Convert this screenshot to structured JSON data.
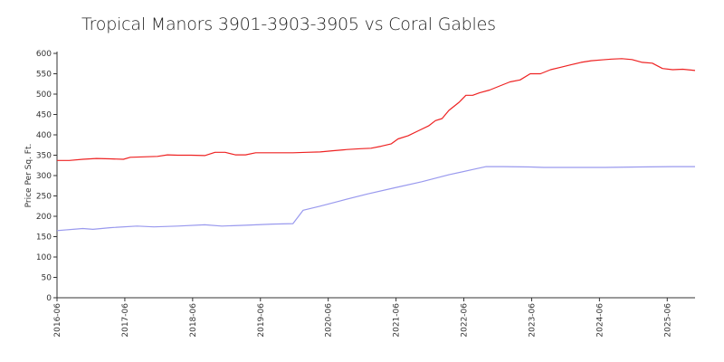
{
  "chart_data": {
    "type": "line",
    "title": "Tropical Manors 3901-3903-3905 vs Coral Gables",
    "xlabel": "",
    "ylabel": "Price Per Sq. Ft.",
    "ylim": [
      0,
      600
    ],
    "yticks": [
      0,
      50,
      100,
      150,
      200,
      250,
      300,
      350,
      400,
      450,
      500,
      550,
      600
    ],
    "xlim": [
      2016.42,
      2025.83
    ],
    "xticks": [
      {
        "label": "2016-06",
        "x": 2016.42
      },
      {
        "label": "2017-06",
        "x": 2017.42
      },
      {
        "label": "2018-06",
        "x": 2018.42
      },
      {
        "label": "2019-06",
        "x": 2019.42
      },
      {
        "label": "2020-06",
        "x": 2020.42
      },
      {
        "label": "2021-06",
        "x": 2021.42
      },
      {
        "label": "2022-06",
        "x": 2022.42
      },
      {
        "label": "2023-06",
        "x": 2023.42
      },
      {
        "label": "2024-06",
        "x": 2024.42
      },
      {
        "label": "2025-06",
        "x": 2025.42
      }
    ],
    "grid": false,
    "series": [
      {
        "name": "Tropical Manors 3901-3903-3905",
        "color": "#ee2222",
        "x": [
          2016.42,
          2016.6,
          2016.8,
          2017.0,
          2017.2,
          2017.4,
          2017.5,
          2017.7,
          2017.9,
          2018.05,
          2018.2,
          2018.4,
          2018.6,
          2018.75,
          2018.9,
          2019.05,
          2019.2,
          2019.35,
          2019.5,
          2019.7,
          2019.9,
          2020.1,
          2020.3,
          2020.5,
          2020.7,
          2020.9,
          2021.05,
          2021.2,
          2021.35,
          2021.45,
          2021.6,
          2021.75,
          2021.9,
          2022.0,
          2022.1,
          2022.2,
          2022.35,
          2022.45,
          2022.55,
          2022.65,
          2022.8,
          2022.95,
          2023.1,
          2023.25,
          2023.4,
          2023.55,
          2023.7,
          2023.85,
          2024.0,
          2024.15,
          2024.3,
          2024.45,
          2024.6,
          2024.75,
          2024.9,
          2025.05,
          2025.2,
          2025.35,
          2025.5,
          2025.65,
          2025.83
        ],
        "values": [
          337,
          337,
          340,
          342,
          341,
          340,
          345,
          346,
          347,
          351,
          350,
          350,
          349,
          357,
          357,
          351,
          351,
          356,
          356,
          356,
          356,
          357,
          358,
          361,
          364,
          366,
          367,
          372,
          378,
          390,
          398,
          410,
          422,
          435,
          440,
          460,
          480,
          497,
          497,
          503,
          510,
          520,
          530,
          535,
          550,
          550,
          560,
          566,
          572,
          578,
          582,
          584,
          586,
          587,
          585,
          578,
          576,
          563,
          560,
          561,
          558
        ]
      },
      {
        "name": "Coral Gables",
        "color": "#9999ee",
        "x": [
          2016.42,
          2016.8,
          2016.95,
          2017.2,
          2017.6,
          2017.85,
          2018.2,
          2018.6,
          2018.85,
          2019.2,
          2019.6,
          2019.9,
          2020.05,
          2020.3,
          2020.6,
          2021.0,
          2021.4,
          2021.8,
          2022.2,
          2022.55,
          2022.75,
          2023.0,
          2023.4,
          2023.6,
          2024.0,
          2024.5,
          2025.0,
          2025.5,
          2025.83
        ],
        "values": [
          165,
          170,
          168,
          172,
          176,
          174,
          176,
          179,
          176,
          178,
          181,
          182,
          215,
          225,
          238,
          255,
          270,
          285,
          302,
          315,
          322,
          322,
          321,
          320,
          320,
          320,
          321,
          322,
          322
        ]
      }
    ]
  }
}
